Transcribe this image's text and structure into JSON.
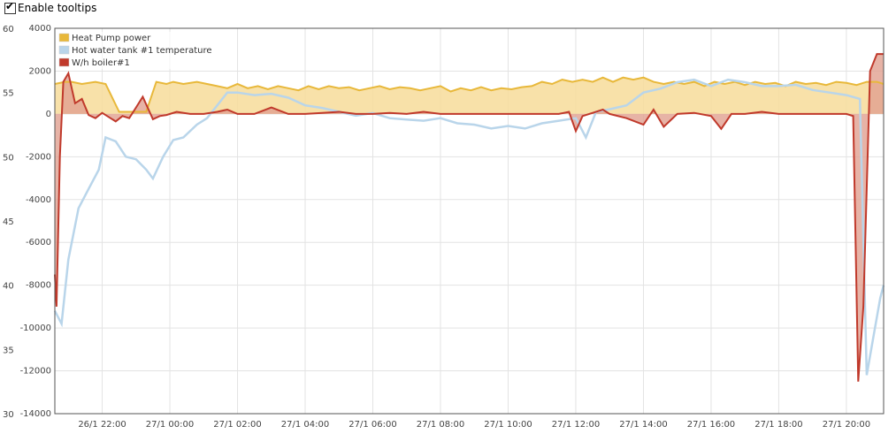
{
  "toolbar": {
    "tooltips_label": "Enable tooltips",
    "tooltips_checked": true
  },
  "chart_data": {
    "type": "line",
    "title": "",
    "xlabel": "",
    "ylabel": "",
    "x_tick_labels": [
      "26/1 22:00",
      "27/1 00:00",
      "27/1 02:00",
      "27/1 04:00",
      "27/1 06:00",
      "27/1 08:00",
      "27/1 10:00",
      "27/1 12:00",
      "27/1 14:00",
      "27/1 16:00",
      "27/1 18:00",
      "27/1 20:00"
    ],
    "x_tick_hours": [
      22,
      24,
      26,
      28,
      30,
      32,
      34,
      36,
      38,
      40,
      42,
      44
    ],
    "xlim_hours": [
      20.6,
      45.1
    ],
    "y_left": {
      "ticks": [
        "60",
        "55",
        "50",
        "45",
        "40",
        "35",
        "30"
      ],
      "ylim": [
        30,
        60
      ]
    },
    "y_right": {
      "ticks": [
        "4000",
        "2000",
        "0",
        "-2000",
        "-4000",
        "-6000",
        "-8000",
        "-10000",
        "-12000",
        "-14000"
      ],
      "ylim": [
        -14000,
        4000
      ]
    },
    "grid": true,
    "legend_position": "top-left",
    "colors": {
      "heat_pump": "#e8b83a",
      "heat_pump_fill": "#f7dc9a",
      "tank": "#b9d5ea",
      "boiler": "#c0392b",
      "boiler_fill": "#e1a090"
    },
    "series": [
      {
        "name": "Heat Pump power",
        "axis": "right",
        "x": [
          20.6,
          20.9,
          21.1,
          21.4,
          21.8,
          22.1,
          22.5,
          23.0,
          23.3,
          23.6,
          23.9,
          24.1,
          24.4,
          24.8,
          25.1,
          25.4,
          25.7,
          26.0,
          26.3,
          26.6,
          26.9,
          27.2,
          27.5,
          27.8,
          28.1,
          28.4,
          28.7,
          29.0,
          29.3,
          29.6,
          29.9,
          30.2,
          30.5,
          30.8,
          31.1,
          31.4,
          31.7,
          32.0,
          32.3,
          32.6,
          32.9,
          33.2,
          33.5,
          33.8,
          34.1,
          34.4,
          34.7,
          35.0,
          35.3,
          35.6,
          35.9,
          36.2,
          36.5,
          36.8,
          37.1,
          37.4,
          37.7,
          38.0,
          38.3,
          38.6,
          38.9,
          39.2,
          39.5,
          39.8,
          40.1,
          40.4,
          40.7,
          41.0,
          41.3,
          41.6,
          41.9,
          42.2,
          42.5,
          42.8,
          43.1,
          43.4,
          43.7,
          44.0,
          44.3,
          44.6,
          44.9,
          45.1
        ],
        "values": [
          1400,
          1500,
          1500,
          1400,
          1500,
          1400,
          100,
          100,
          100,
          1500,
          1400,
          1500,
          1400,
          1500,
          1400,
          1300,
          1200,
          1400,
          1200,
          1300,
          1150,
          1300,
          1200,
          1100,
          1300,
          1150,
          1300,
          1200,
          1250,
          1100,
          1200,
          1300,
          1150,
          1250,
          1200,
          1100,
          1200,
          1300,
          1050,
          1200,
          1100,
          1250,
          1100,
          1200,
          1150,
          1250,
          1300,
          1500,
          1400,
          1600,
          1500,
          1600,
          1500,
          1700,
          1500,
          1700,
          1600,
          1700,
          1500,
          1400,
          1500,
          1400,
          1500,
          1300,
          1500,
          1400,
          1500,
          1350,
          1500,
          1400,
          1450,
          1300,
          1500,
          1400,
          1450,
          1350,
          1500,
          1450,
          1350,
          1500,
          1500,
          1400
        ]
      },
      {
        "name": "Hot water tank #1 temperature",
        "axis": "left",
        "x": [
          20.6,
          20.8,
          21.0,
          21.3,
          21.6,
          21.9,
          22.1,
          22.4,
          22.7,
          23.0,
          23.3,
          23.5,
          23.8,
          24.1,
          24.4,
          24.8,
          25.1,
          25.4,
          25.7,
          26.0,
          26.5,
          27.0,
          27.5,
          28.0,
          28.5,
          29.0,
          29.5,
          30.0,
          30.5,
          31.0,
          31.5,
          32.0,
          32.5,
          33.0,
          33.5,
          34.0,
          34.5,
          35.0,
          35.5,
          36.0,
          36.3,
          36.6,
          37.0,
          37.5,
          38.0,
          38.5,
          39.0,
          39.5,
          40.0,
          40.5,
          41.0,
          41.5,
          42.0,
          42.5,
          43.0,
          43.5,
          44.0,
          44.4,
          44.6,
          44.8,
          45.0,
          45.1
        ],
        "values": [
          38,
          37,
          42,
          46,
          47.5,
          49,
          51.5,
          51.2,
          50,
          49.8,
          49,
          48.3,
          50,
          51.3,
          51.5,
          52.5,
          53,
          54,
          55,
          55,
          54.8,
          54.9,
          54.6,
          54,
          53.8,
          53.5,
          53.2,
          53.4,
          53,
          52.9,
          52.8,
          53,
          52.6,
          52.5,
          52.2,
          52.4,
          52.2,
          52.6,
          52.8,
          53,
          51.5,
          53.5,
          53.7,
          54,
          55,
          55.3,
          55.8,
          56,
          55.5,
          56,
          55.8,
          55.5,
          55.5,
          55.6,
          55.2,
          55,
          54.8,
          54.5,
          33,
          36,
          39,
          40
        ]
      },
      {
        "name": "W/h boiler#1",
        "axis": "right",
        "x": [
          20.6,
          20.65,
          20.75,
          20.85,
          21.0,
          21.2,
          21.4,
          21.6,
          21.8,
          22.0,
          22.4,
          22.6,
          22.8,
          23.0,
          23.2,
          23.5,
          23.7,
          23.9,
          24.2,
          24.6,
          25.0,
          25.4,
          25.7,
          26.0,
          26.5,
          27.0,
          27.5,
          28.0,
          28.5,
          29.0,
          29.5,
          30.0,
          30.5,
          31.0,
          31.5,
          32.0,
          32.5,
          33.0,
          33.5,
          34.0,
          34.5,
          35.0,
          35.5,
          35.8,
          36.0,
          36.2,
          36.5,
          36.8,
          37.0,
          37.5,
          38.0,
          38.3,
          38.6,
          39.0,
          39.5,
          40.0,
          40.3,
          40.6,
          41.0,
          41.5,
          42.0,
          42.5,
          43.0,
          43.5,
          44.0,
          44.2,
          44.35,
          44.5,
          44.7,
          44.9,
          45.1
        ],
        "values": [
          -7500,
          -9000,
          -2000,
          1500,
          1900,
          500,
          700,
          -50,
          -200,
          50,
          -350,
          -100,
          -200,
          300,
          800,
          -250,
          -100,
          -50,
          100,
          0,
          0,
          100,
          200,
          0,
          0,
          300,
          0,
          0,
          50,
          100,
          0,
          0,
          50,
          0,
          100,
          0,
          0,
          0,
          0,
          0,
          0,
          0,
          0,
          100,
          -800,
          -100,
          50,
          200,
          0,
          -200,
          -500,
          200,
          -600,
          0,
          50,
          -100,
          -700,
          0,
          0,
          100,
          0,
          0,
          0,
          0,
          0,
          -100,
          -12500,
          -9000,
          2000,
          2800,
          2800
        ]
      }
    ]
  }
}
